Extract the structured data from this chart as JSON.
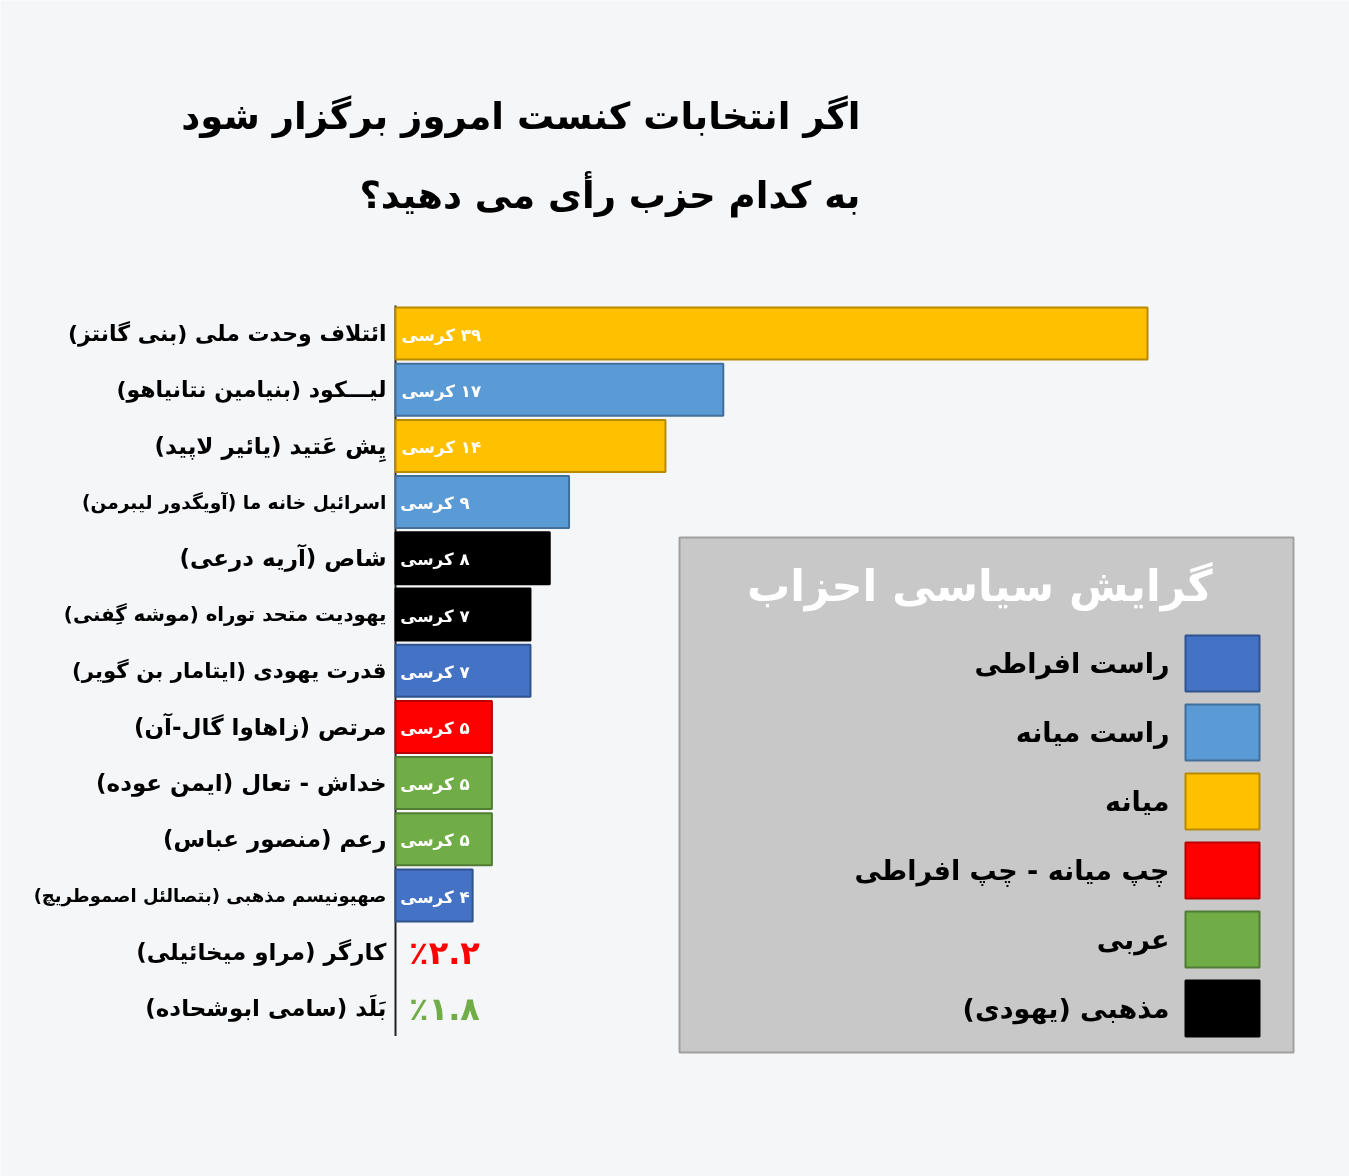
{
  "chart_data": {
    "type": "bar",
    "orientation": "horizontal",
    "stacked": true,
    "title": "اگر انتخابات کنست امروز برگزار شود\nبه کدام حزب رأی می دهید؟",
    "legend_title": "گرایش سیاسی احزاب",
    "legend": "bottom right",
    "categories": [
      "ائتلاف وحدت ملی (بنی گانتز)",
      "لیـــکود (بنیامین نتانیاهو)",
      "یِش عَتید (یائیر لاپید)",
      "اسرائیل خانه ما (آویگدور لیبرمن)",
      "شاص (آریه درعی)",
      "یهودیت متحد توراه (موشه گِفنی)",
      "قدرت یهودی (ایتامار بن گویر)",
      "مرتص (زاهاوا گال-آن)",
      "خداش - تعال (ایمن عوده)",
      "رعم (منصور عباس)",
      "صهیونیسم مذهبی (بتصالئل اصموطریچ)",
      "کارگر (مراو میخائیلی)",
      "بَلَد (سامی ابوشحاده)"
    ],
    "series": [
      {
        "name": "راست افراطی",
        "color": "#4472c4",
        "values": [
          null,
          null,
          null,
          null,
          null,
          null,
          7,
          null,
          null,
          null,
          4,
          null,
          null
        ],
        "value_labels": [
          null,
          null,
          null,
          null,
          null,
          null,
          "۷ کرسی",
          null,
          null,
          null,
          "۴ کرسی",
          null,
          null
        ]
      },
      {
        "name": "راست میانه",
        "color": "#5b9bd5",
        "values": [
          null,
          17,
          null,
          9,
          null,
          null,
          null,
          null,
          null,
          null,
          null,
          null,
          null
        ],
        "value_labels": [
          null,
          "۱۷ کرسی",
          null,
          "۹ کرسی",
          null,
          null,
          null,
          null,
          null,
          null,
          null,
          null,
          null
        ]
      },
      {
        "name": "میانه",
        "color": "#ffc000",
        "values": [
          39,
          null,
          14,
          null,
          null,
          null,
          null,
          null,
          null,
          null,
          null,
          null,
          null
        ],
        "value_labels": [
          "۳۹ کرسی",
          null,
          "۱۴ کرسی",
          null,
          null,
          null,
          null,
          null,
          null,
          null,
          null,
          null,
          null
        ]
      },
      {
        "name": "چپ میانه - چپ افراطی",
        "color": "#ff0000",
        "values": [
          null,
          null,
          null,
          null,
          null,
          null,
          null,
          5,
          null,
          null,
          null,
          null,
          null
        ],
        "value_labels": [
          null,
          null,
          null,
          null,
          null,
          null,
          null,
          "۵ کرسی",
          null,
          null,
          null,
          "٪۲.۲",
          null
        ]
      },
      {
        "name": "عربی",
        "color": "#70ad47",
        "values": [
          null,
          null,
          null,
          null,
          null,
          null,
          null,
          null,
          5,
          5,
          null,
          null,
          null
        ],
        "value_labels": [
          null,
          null,
          null,
          null,
          null,
          null,
          null,
          null,
          "۵ کرسی",
          "۵ کرسی",
          null,
          null,
          "٪۱.۸"
        ]
      },
      {
        "name": "مذهبی (یهودی)",
        "color": "#000000",
        "values": [
          null,
          null,
          null,
          null,
          8,
          7,
          null,
          null,
          null,
          null,
          null,
          null,
          null
        ],
        "value_labels": [
          null,
          null,
          null,
          null,
          "۸ کرسی",
          "۷ کرسی",
          null,
          null,
          null,
          null,
          null,
          null,
          null
        ]
      }
    ]
  }
}
